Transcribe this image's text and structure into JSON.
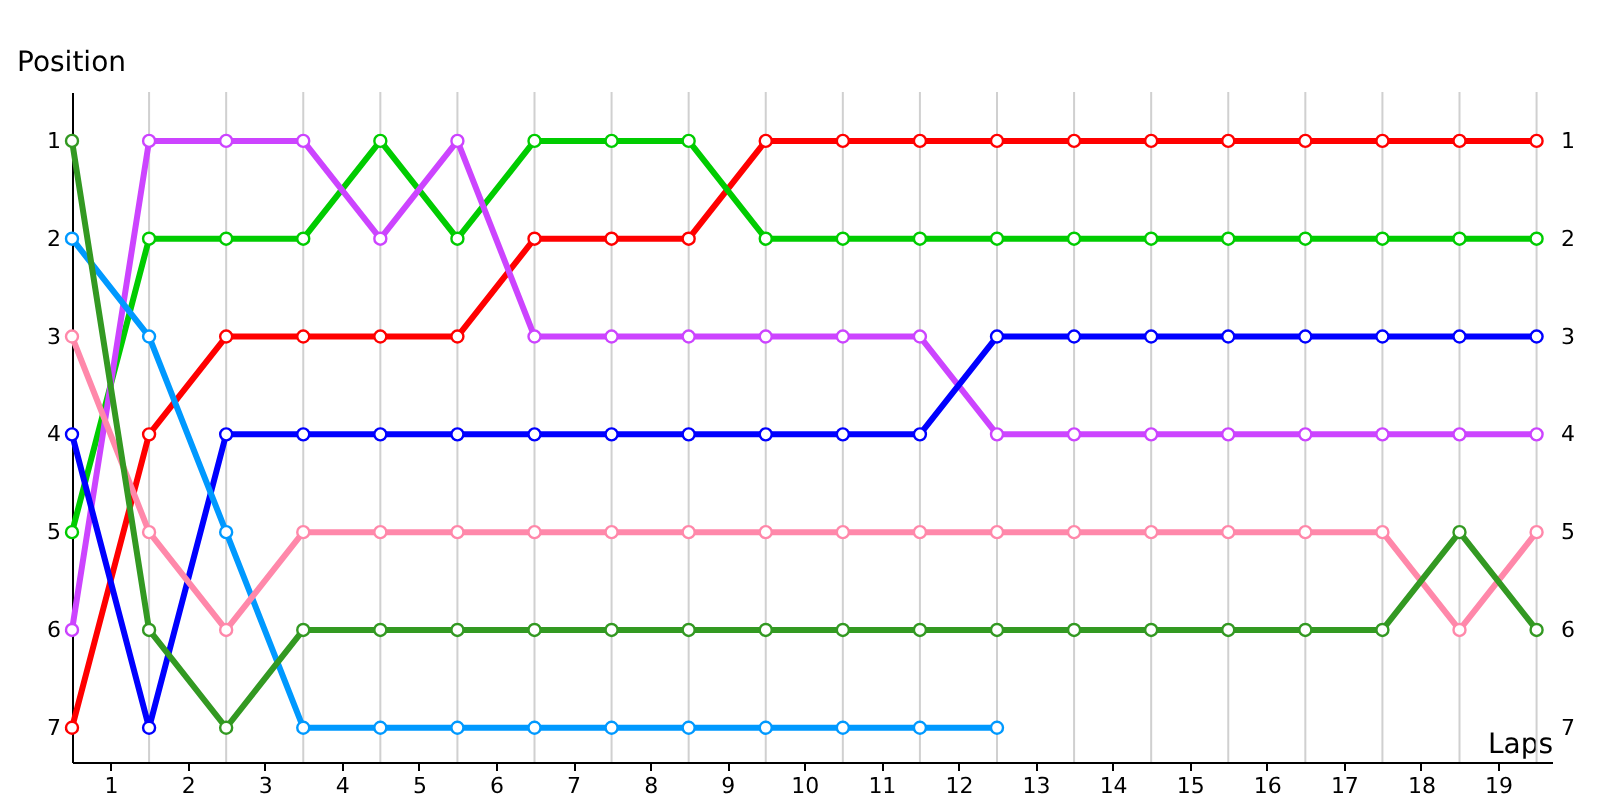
{
  "chart_data": {
    "type": "line",
    "xlabel": "Laps",
    "ylabel": "Position",
    "x": [
      0,
      1,
      2,
      3,
      4,
      5,
      6,
      7,
      8,
      9,
      10,
      11,
      12,
      13,
      14,
      15,
      16,
      17,
      18,
      19
    ],
    "series": [
      {
        "color": "#ff0000",
        "values": [
          7,
          4,
          3,
          3,
          3,
          3,
          2,
          2,
          2,
          1,
          1,
          1,
          1,
          1,
          1,
          1,
          1,
          1,
          1,
          1
        ]
      },
      {
        "color": "#00cc00",
        "values": [
          5,
          2,
          2,
          2,
          1,
          2,
          1,
          1,
          1,
          2,
          2,
          2,
          2,
          2,
          2,
          2,
          2,
          2,
          2,
          2
        ]
      },
      {
        "color": "#cc44ff",
        "values": [
          6,
          1,
          1,
          1,
          2,
          1,
          3,
          3,
          3,
          3,
          3,
          3,
          4,
          4,
          4,
          4,
          4,
          4,
          4,
          4
        ]
      },
      {
        "color": "#0000ff",
        "values": [
          4,
          7,
          4,
          4,
          4,
          4,
          4,
          4,
          4,
          4,
          4,
          4,
          3,
          3,
          3,
          3,
          3,
          3,
          3,
          3
        ]
      },
      {
        "color": "#0099ff",
        "values": [
          2,
          3,
          5,
          7,
          7,
          7,
          7,
          7,
          7,
          7,
          7,
          7,
          7,
          null,
          null,
          null,
          null,
          null,
          null,
          null
        ]
      },
      {
        "color": "#ff88aa",
        "values": [
          3,
          5,
          6,
          5,
          5,
          5,
          5,
          5,
          5,
          5,
          5,
          5,
          5,
          5,
          5,
          5,
          5,
          5,
          6,
          5
        ]
      },
      {
        "color": "#339922",
        "values": [
          1,
          6,
          7,
          6,
          6,
          6,
          6,
          6,
          6,
          6,
          6,
          6,
          6,
          6,
          6,
          6,
          6,
          6,
          5,
          6
        ]
      }
    ],
    "xlim": [
      0,
      19.2
    ],
    "xticks": [
      {
        "value": 0.5,
        "label": "1"
      },
      {
        "value": 1.5,
        "label": "2"
      },
      {
        "value": 2.5,
        "label": "3"
      },
      {
        "value": 3.5,
        "label": "4"
      },
      {
        "value": 4.5,
        "label": "5"
      },
      {
        "value": 5.5,
        "label": "6"
      },
      {
        "value": 6.5,
        "label": "7"
      },
      {
        "value": 7.5,
        "label": "8"
      },
      {
        "value": 8.5,
        "label": "9"
      },
      {
        "value": 9.5,
        "label": "10"
      },
      {
        "value": 10.5,
        "label": "11"
      },
      {
        "value": 11.5,
        "label": "12"
      },
      {
        "value": 12.5,
        "label": "13"
      },
      {
        "value": 13.5,
        "label": "14"
      },
      {
        "value": 14.5,
        "label": "15"
      },
      {
        "value": 15.5,
        "label": "16"
      },
      {
        "value": 16.5,
        "label": "17"
      },
      {
        "value": 17.5,
        "label": "18"
      },
      {
        "value": 18.5,
        "label": "19"
      },
      {
        "value": 1,
        "label": null
      },
      {
        "value": 2,
        "label": null
      },
      {
        "value": 3,
        "label": null
      },
      {
        "value": 4,
        "label": null
      },
      {
        "value": 5,
        "label": null
      },
      {
        "value": 6,
        "label": null
      },
      {
        "value": 7,
        "label": null
      },
      {
        "value": 8,
        "label": null
      },
      {
        "value": 9,
        "label": null
      },
      {
        "value": 10,
        "label": null
      },
      {
        "value": 11,
        "label": null
      },
      {
        "value": 12,
        "label": null
      },
      {
        "value": 13,
        "label": null
      },
      {
        "value": 14,
        "label": null
      },
      {
        "value": 15,
        "label": null
      },
      {
        "value": 16,
        "label": null
      },
      {
        "value": 17,
        "label": null
      },
      {
        "value": 18,
        "label": null
      },
      {
        "value": 19,
        "label": null
      }
    ],
    "ylim": [
      7.35,
      0.5
    ],
    "yticks": [
      1,
      2,
      3,
      4,
      5,
      6,
      7
    ],
    "y2lim": [
      7.35,
      0.5
    ],
    "y2ticks": [
      1,
      2,
      3,
      4,
      5,
      6,
      7
    ],
    "grid": "x",
    "marker": "circle",
    "line_style": "solid"
  }
}
